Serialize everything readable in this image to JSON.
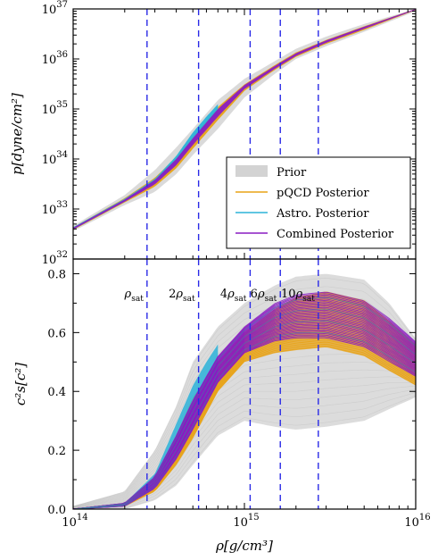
{
  "colors": {
    "prior": "#d3d3d3",
    "pqcd": "#e8a317",
    "astro": "#2bb3d9",
    "combined": "#8a1bc2",
    "vline": "#2a2ae6"
  },
  "legend": {
    "prior": "Prior",
    "pqcd": "pQCD Posterior",
    "astro": "Astro. Posterior",
    "combined": "Combined Posterior"
  },
  "chart_data": [
    {
      "type": "area",
      "panel": "top",
      "ylabel": "p[dyne/cm²]",
      "yscale": "log",
      "xscale": "log",
      "xlim": [
        100000000000000.0,
        1e+16
      ],
      "ylim": [
        1e+32,
        1e+37
      ],
      "y_ticks": [
        {
          "base": "10",
          "exp": "32"
        },
        {
          "base": "10",
          "exp": "33"
        },
        {
          "base": "10",
          "exp": "34"
        },
        {
          "base": "10",
          "exp": "35"
        },
        {
          "base": "10",
          "exp": "36"
        },
        {
          "base": "10",
          "exp": "37"
        }
      ],
      "vlines": [
        270000000000000.0,
        540000000000000.0,
        1080000000000000.0,
        1620000000000000.0,
        2700000000000000.0
      ],
      "series": [
        {
          "name": "Prior",
          "x": [
            100000000000000.0,
            200000000000000.0,
            300000000000000.0,
            400000000000000.0,
            500000000000000.0,
            700000000000000.0,
            1000000000000000.0,
            1500000000000000.0,
            2000000000000000.0,
            3000000000000000.0,
            5000000000000000.0,
            1e+16
          ],
          "lower": [
            3.6e+32,
            1.2e+33,
            2.2e+33,
            5e+33,
            1.2e+34,
            4e+34,
            1.7e+35,
            5e+35,
            1e+36,
            1.8e+36,
            3.5e+36,
            9e+36
          ],
          "upper": [
            4.6e+32,
            1.9e+33,
            6e+33,
            1.7e+34,
            4e+34,
            1.5e+35,
            4e+35,
            9e+35,
            1.6e+36,
            2.8e+36,
            5e+36,
            1e+37
          ]
        },
        {
          "name": "pQCD Posterior",
          "x": [
            100000000000000.0,
            200000000000000.0,
            300000000000000.0,
            400000000000000.0,
            500000000000000.0,
            700000000000000.0,
            1000000000000000.0,
            1500000000000000.0,
            2000000000000000.0,
            3000000000000000.0,
            5000000000000000.0,
            1e+16
          ],
          "lower": [
            3.8e+32,
            1.35e+33,
            2.8e+33,
            6.5e+33,
            1.6e+34,
            6e+34,
            2.3e+35,
            6e+35,
            1.1e+36,
            2e+36,
            3.8e+36,
            9.5e+36
          ],
          "upper": [
            4.3e+32,
            1.65e+33,
            4.2e+33,
            1.1e+34,
            2.8e+34,
            1.1e+35,
            3.1e+35,
            7.5e+35,
            1.35e+36,
            2.4e+36,
            4.5e+36,
            1e+37
          ]
        },
        {
          "name": "Astro. Posterior",
          "x": [
            100000000000000.0,
            200000000000000.0,
            300000000000000.0,
            400000000000000.0,
            500000000000000.0,
            600000000000000.0,
            700000000000000.0
          ],
          "lower": [
            3.9e+32,
            1.4e+33,
            3.3e+33,
            8e+33,
            2.2e+34,
            4.5e+34,
            8e+34
          ],
          "upper": [
            4.3e+32,
            1.6e+33,
            4e+33,
            1.15e+34,
            3.4e+34,
            7e+34,
            1.25e+35
          ]
        },
        {
          "name": "Combined Posterior",
          "x": [
            100000000000000.0,
            200000000000000.0,
            300000000000000.0,
            400000000000000.0,
            500000000000000.0,
            700000000000000.0,
            1000000000000000.0,
            1500000000000000.0,
            2000000000000000.0,
            3000000000000000.0,
            5000000000000000.0,
            1e+16
          ],
          "lower": [
            3.9e+32,
            1.4e+33,
            3.1e+33,
            7.5e+33,
            1.9e+34,
            7e+34,
            2.5e+35,
            6.3e+35,
            1.15e+36,
            2.1e+36,
            4e+36,
            9.6e+36
          ],
          "upper": [
            4.2e+32,
            1.55e+33,
            3.8e+33,
            1e+34,
            2.6e+34,
            1e+35,
            3e+35,
            7.2e+35,
            1.3e+36,
            2.35e+36,
            4.4e+36,
            1e+37
          ]
        }
      ]
    },
    {
      "type": "line",
      "panel": "bottom",
      "ylabel": "c²s[c²]",
      "xlabel": "ρ[g/cm³]",
      "xscale": "log",
      "xlim": [
        100000000000000.0,
        1e+16
      ],
      "ylim": [
        0.0,
        0.85
      ],
      "y_ticks": [
        "0.0",
        "0.2",
        "0.4",
        "0.6",
        "0.8"
      ],
      "x_ticks": [
        {
          "base": "10",
          "exp": "14"
        },
        {
          "base": "10",
          "exp": "15"
        },
        {
          "base": "10",
          "exp": "16"
        }
      ],
      "vlines": [
        270000000000000.0,
        540000000000000.0,
        1080000000000000.0,
        1620000000000000.0,
        2700000000000000.0
      ],
      "density_labels": [
        {
          "coef": "",
          "sym": "ρ",
          "sub": "sat"
        },
        {
          "coef": "2",
          "sym": "ρ",
          "sub": "sat"
        },
        {
          "coef": "4",
          "sym": "ρ",
          "sub": "sat"
        },
        {
          "coef": "6",
          "sym": "ρ",
          "sub": "sat"
        },
        {
          "coef": "10",
          "sym": "ρ",
          "sub": "sat"
        }
      ],
      "series": [
        {
          "name": "Prior",
          "x": [
            100000000000000.0,
            200000000000000.0,
            300000000000000.0,
            400000000000000.0,
            500000000000000.0,
            700000000000000.0,
            1000000000000000.0,
            1500000000000000.0,
            2000000000000000.0,
            3000000000000000.0,
            5000000000000000.0,
            7000000000000000.0,
            1e+16
          ],
          "lower": [
            0.0,
            0.0,
            0.03,
            0.08,
            0.15,
            0.25,
            0.3,
            0.28,
            0.27,
            0.28,
            0.3,
            0.34,
            0.38
          ],
          "upper": [
            0.01,
            0.06,
            0.2,
            0.35,
            0.5,
            0.62,
            0.7,
            0.76,
            0.79,
            0.8,
            0.78,
            0.7,
            0.58
          ]
        },
        {
          "name": "pQCD Posterior",
          "x": [
            100000000000000.0,
            200000000000000.0,
            300000000000000.0,
            400000000000000.0,
            500000000000000.0,
            700000000000000.0,
            1000000000000000.0,
            1500000000000000.0,
            2000000000000000.0,
            3000000000000000.0,
            5000000000000000.0,
            7000000000000000.0,
            1e+16
          ],
          "lower": [
            0.0,
            0.01,
            0.06,
            0.15,
            0.24,
            0.4,
            0.5,
            0.53,
            0.54,
            0.55,
            0.52,
            0.47,
            0.42
          ],
          "upper": [
            0.0,
            0.02,
            0.11,
            0.25,
            0.38,
            0.5,
            0.6,
            0.68,
            0.72,
            0.74,
            0.71,
            0.64,
            0.56
          ]
        },
        {
          "name": "Astro. Posterior",
          "x": [
            100000000000000.0,
            200000000000000.0,
            300000000000000.0,
            400000000000000.0,
            500000000000000.0,
            600000000000000.0,
            700000000000000.0
          ],
          "lower": [
            0.0,
            0.01,
            0.08,
            0.2,
            0.31,
            0.39,
            0.45
          ],
          "upper": [
            0.0,
            0.02,
            0.12,
            0.29,
            0.42,
            0.5,
            0.56
          ]
        },
        {
          "name": "Combined Posterior",
          "x": [
            100000000000000.0,
            200000000000000.0,
            300000000000000.0,
            400000000000000.0,
            500000000000000.0,
            700000000000000.0,
            1000000000000000.0,
            1500000000000000.0,
            2000000000000000.0,
            3000000000000000.0,
            5000000000000000.0,
            7000000000000000.0,
            1e+16
          ],
          "lower": [
            0.0,
            0.01,
            0.07,
            0.17,
            0.27,
            0.43,
            0.53,
            0.57,
            0.58,
            0.58,
            0.55,
            0.5,
            0.45
          ],
          "upper": [
            0.0,
            0.02,
            0.11,
            0.25,
            0.37,
            0.52,
            0.62,
            0.7,
            0.73,
            0.74,
            0.71,
            0.65,
            0.57
          ]
        }
      ]
    }
  ]
}
